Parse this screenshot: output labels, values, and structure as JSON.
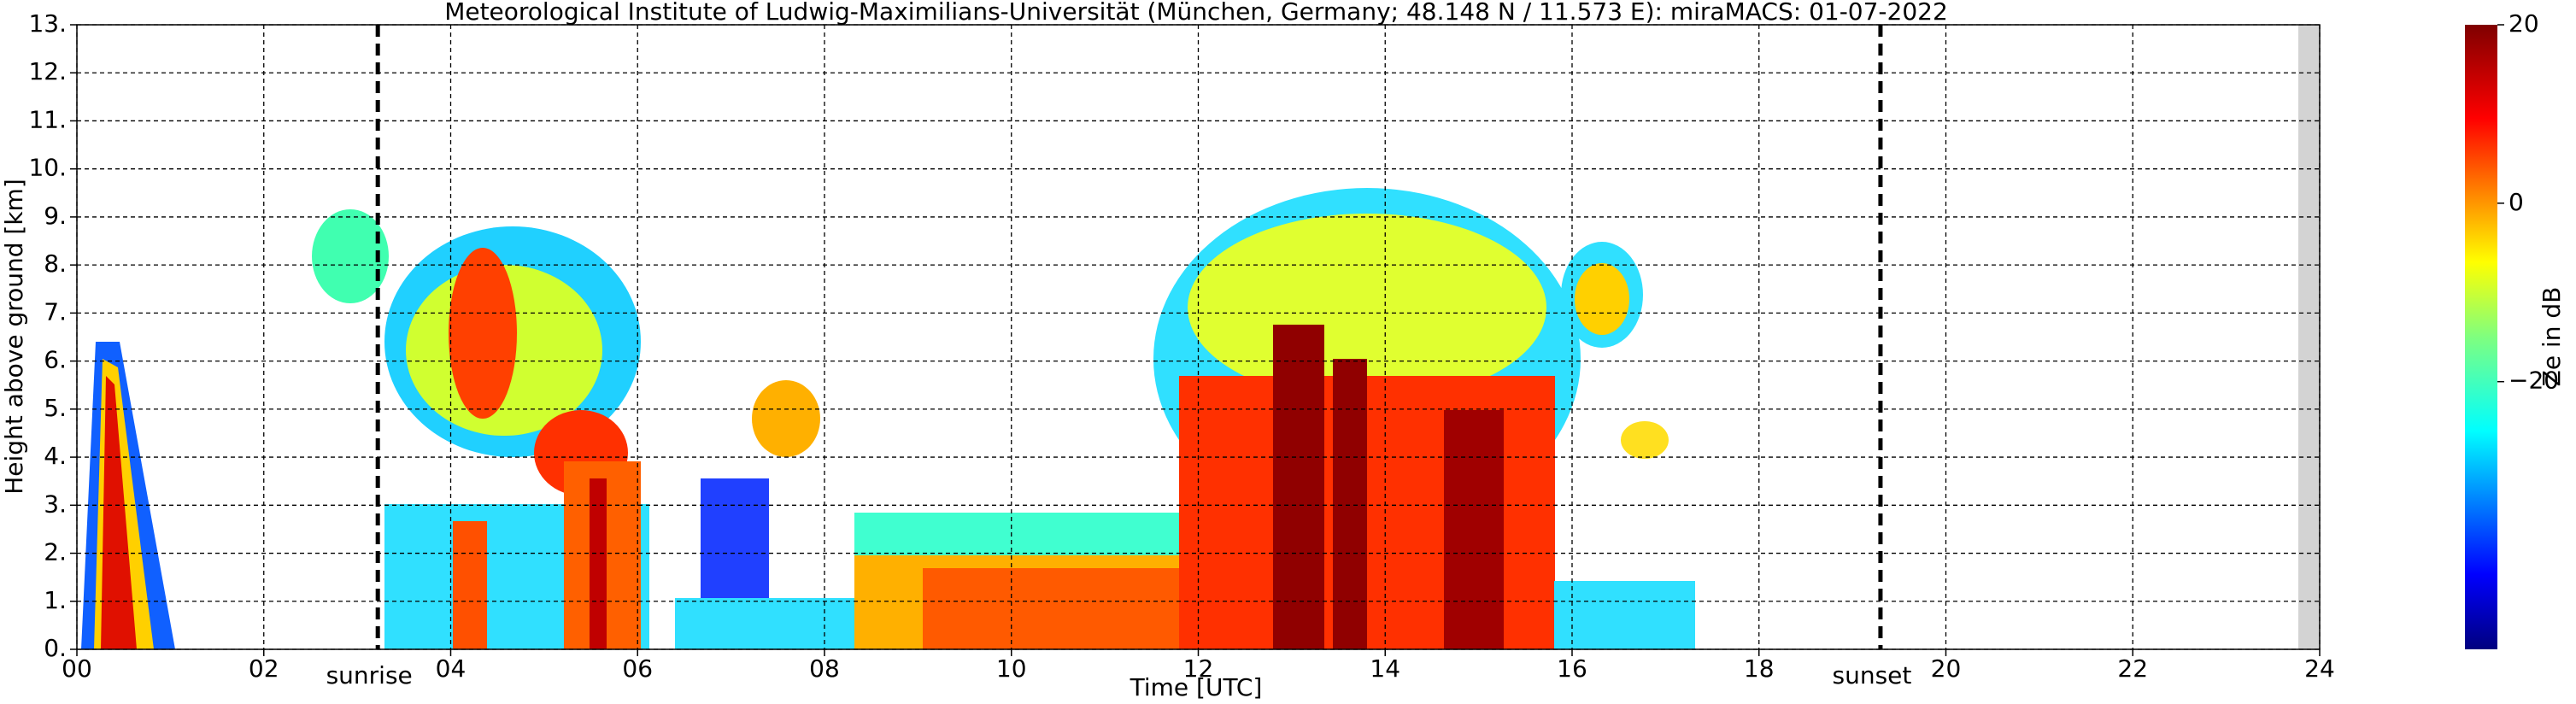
{
  "chart_data": {
    "type": "heatmap",
    "title": "Meteorological Institute of Ludwig-Maximilians-Universität (München, Germany; 48.148 N / 11.573 E):    miraMACS: 01-07-2022",
    "x_label": "Time [UTC]",
    "y_label": "Height above ground [km]",
    "xlim": [
      0,
      24
    ],
    "ylim": [
      0,
      13
    ],
    "xticks": [
      {
        "value": 0,
        "label": "00"
      },
      {
        "value": 2,
        "label": "02"
      },
      {
        "value": 4,
        "label": "04"
      },
      {
        "value": 6,
        "label": "06"
      },
      {
        "value": 8,
        "label": "08"
      },
      10,
      12,
      14,
      16,
      18,
      20,
      22,
      24
    ],
    "yticks": [
      {
        "value": 0,
        "label": "0."
      },
      {
        "value": 1,
        "label": "1."
      },
      {
        "value": 2,
        "label": "2."
      },
      {
        "value": 3,
        "label": "3."
      },
      {
        "value": 4,
        "label": "4."
      },
      {
        "value": 5,
        "label": "5."
      },
      {
        "value": 6,
        "label": "6."
      },
      {
        "value": 7,
        "label": "7."
      },
      {
        "value": 8,
        "label": "8."
      },
      {
        "value": 9,
        "label": "9."
      },
      {
        "value": 10,
        "label": "10."
      },
      {
        "value": 11,
        "label": "11."
      },
      {
        "value": 12,
        "label": "12."
      },
      {
        "value": 13,
        "label": "13."
      }
    ],
    "grid": true,
    "colormap": "jet",
    "clim": [
      -50,
      20
    ],
    "cticks": [
      20,
      0,
      {
        "value": -20,
        "label": "−20"
      }
    ],
    "colorbar_label": "Ze in dB",
    "annotations": [
      {
        "text": "sunrise",
        "x": 3.22
      },
      {
        "text": "sunset",
        "x": 19.3
      }
    ]
  }
}
